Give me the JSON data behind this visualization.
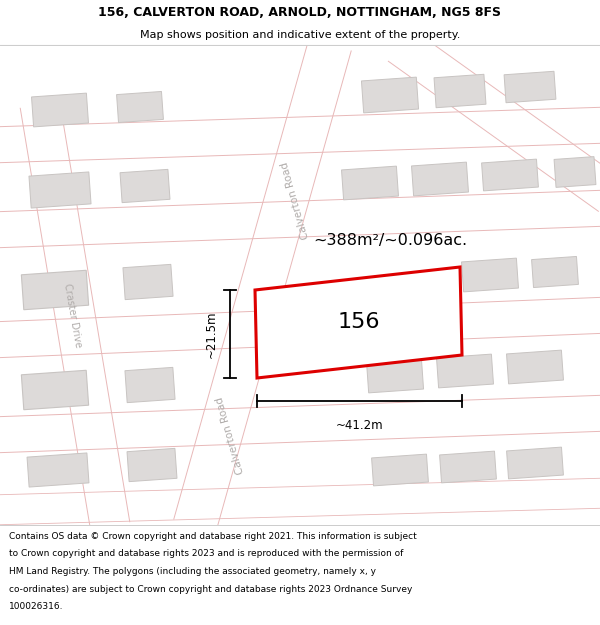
{
  "title_line1": "156, CALVERTON ROAD, ARNOLD, NOTTINGHAM, NG5 8FS",
  "title_line2": "Map shows position and indicative extent of the property.",
  "footer_lines": [
    "Contains OS data © Crown copyright and database right 2021. This information is subject",
    "to Crown copyright and database rights 2023 and is reproduced with the permission of",
    "HM Land Registry. The polygons (including the associated geometry, namely x, y",
    "co-ordinates) are subject to Crown copyright and database rights 2023 Ordnance Survey",
    "100026316."
  ],
  "area_label": "~388m²/~0.096ac.",
  "width_label": "~41.2m",
  "height_label": "~21.5m",
  "property_number": "156",
  "map_bg": "#f0edec",
  "road_fill": "#ffffff",
  "building_fill": "#dddad9",
  "building_stroke": "#c8c4c2",
  "highlight_color": "#dd0000",
  "road_label_color": "#b0acaa",
  "road_line_color": "#e8b8b8",
  "title_fontsize": 9.0,
  "subtitle_fontsize": 8.0,
  "footer_fontsize": 6.5,
  "area_fontsize": 11.5,
  "prop_label_fontsize": 16,
  "dim_fontsize": 8.5
}
